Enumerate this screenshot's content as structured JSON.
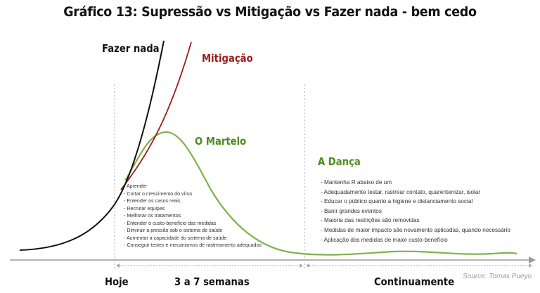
{
  "title": "Gráfico 13: Supressão vs Mitigação vs Fazer nada - bem cedo",
  "curves": {
    "fazer_nada": {
      "label": "Fazer nada",
      "color": "#111111"
    },
    "mitigacao": {
      "label": "Mitigação",
      "color": "#9b1b1b"
    },
    "martelo": {
      "label": "O Martelo",
      "color": "#7fb24a"
    },
    "danca": {
      "label": "A Dança",
      "color": "#4f8a1d"
    }
  },
  "hammer_items": [
    "- Aprender",
    "- Cortar o crescimento do vírus",
    "- Entender os casos reais",
    "- Recrutar equipes",
    "- Melhorar os tratamentos",
    "- Entender o custo-benefício das medidas",
    "- Diminuir a pressão sob o sistema de saúde",
    "- Aumentar a capacidade do sistema de saúde",
    "- Conseguir testes e mecanismos de rastreamento adequados"
  ],
  "dance_items": [
    "- Mantenha R abaixo de um",
    "- Adequadamente testar, rastrear contato, quarentenizar, isolar",
    "- Educar o público quanto a higiene e distanciamento social",
    "- Banir grandes eventos",
    "- Maioria das restrições são removidas",
    "- Medidas de maior impacto são novamente aplicadas, quando necessário",
    "- Aplicação das medidas de maior custo-benefício"
  ],
  "timeline": {
    "hoje": "Hoje",
    "semanas": "3 a 7 semanas",
    "continuamente": "Continuamente"
  },
  "source": "Source: Tomas Pueyo"
}
